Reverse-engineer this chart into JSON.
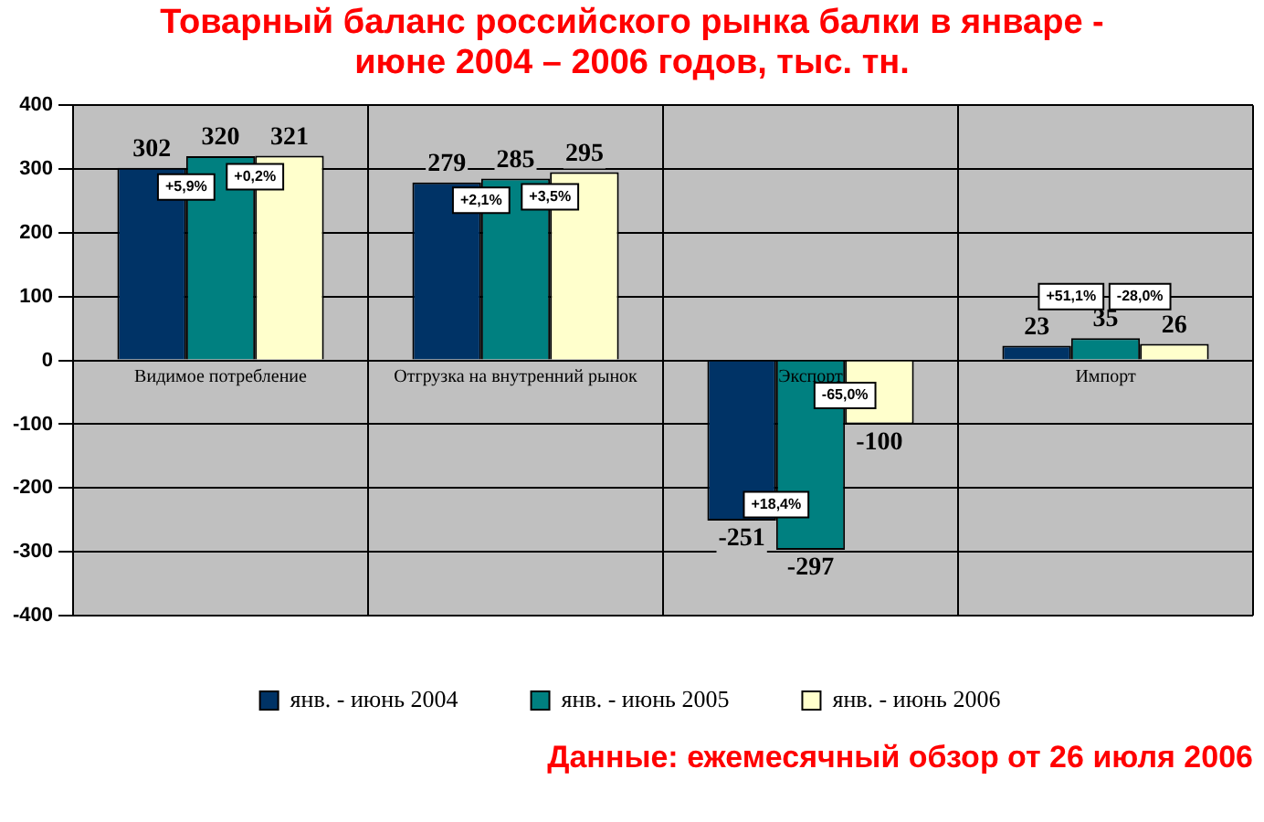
{
  "chart_data": {
    "type": "bar",
    "title": "Товарный баланс российского рынка балки в январе - июне 2004 – 2006 годов, тыс. тн.",
    "categories": [
      "Видимое потребление",
      "Отгрузка на внутренний рынок",
      "Экспорт",
      "Импорт"
    ],
    "series": [
      {
        "name": "янв. - июнь 2004",
        "color": "#003366",
        "values": [
          302,
          279,
          -251,
          23
        ]
      },
      {
        "name": "янв. - июнь 2005",
        "color": "#008080",
        "values": [
          320,
          285,
          -297,
          35
        ]
      },
      {
        "name": "янв. - июнь 2006",
        "color": "#ffffcc",
        "values": [
          321,
          295,
          -100,
          26
        ]
      }
    ],
    "ylim": [
      -400,
      400
    ],
    "yticks": [
      -400,
      -300,
      -200,
      -100,
      0,
      100,
      200,
      300,
      400
    ],
    "grid": true,
    "legend": "bottom",
    "data_labels": true,
    "annotations": [
      "+5,9%",
      "+0,2%",
      "+2,1%",
      "+3,5%",
      "+18,4%",
      "-65,0%",
      "+51,1%",
      "-28,0%",
      "Данные: ежемесячный обзор от 26 июля 2006"
    ]
  }
}
